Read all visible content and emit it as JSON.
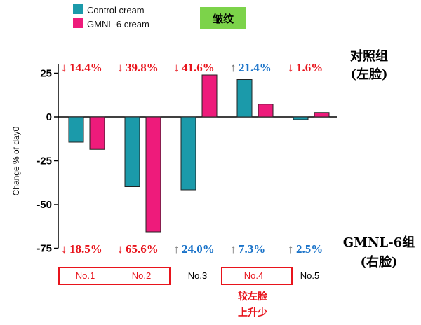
{
  "chart_data": {
    "type": "bar",
    "title": "皱纹",
    "ylabel": "Change % of day0",
    "ylim": [
      -75,
      30
    ],
    "yticks": [
      25,
      0,
      -25,
      -50,
      -75
    ],
    "categories": [
      "No.1",
      "No.2",
      "No.3",
      "No.4",
      "No.5"
    ],
    "series": [
      {
        "name": "Control cream",
        "color": "#1b9aaa",
        "values": [
          -14.4,
          -39.8,
          -41.6,
          21.4,
          -1.6
        ]
      },
      {
        "name": "GMNL-6 cream",
        "color": "#ee1b7b",
        "values": [
          -18.5,
          -65.6,
          24.0,
          7.3,
          2.5
        ]
      }
    ],
    "top_annotations": [
      {
        "arrow": "↓",
        "text": "14.4%",
        "color": "#e8141c"
      },
      {
        "arrow": "↓",
        "text": "39.8%",
        "color": "#e8141c"
      },
      {
        "arrow": "↓",
        "text": "41.6%",
        "color": "#e8141c"
      },
      {
        "arrow": "↑",
        "text": "21.4%",
        "color": "#1a73c9"
      },
      {
        "arrow": "↓",
        "text": "1.6%",
        "color": "#e8141c"
      }
    ],
    "bottom_annotations": [
      {
        "arrow": "↓",
        "text": "18.5%",
        "color": "#e8141c"
      },
      {
        "arrow": "↓",
        "text": "65.6%",
        "color": "#e8141c"
      },
      {
        "arrow": "↑",
        "text": "24.0%",
        "color": "#1a73c9"
      },
      {
        "arrow": "↑",
        "text": "7.3%",
        "color": "#1a73c9"
      },
      {
        "arrow": "↑",
        "text": "2.5%",
        "color": "#1a73c9"
      }
    ],
    "highlighted_groups": [
      [
        "No.1",
        "No.2"
      ],
      [
        "No.4"
      ]
    ],
    "side_labels": {
      "top_line1": "对照组",
      "top_line2": "(左脸)",
      "bottom_line1": "GMNL-6组",
      "bottom_line2": "(右脸)"
    },
    "note_line1": "较左脸",
    "note_line2": "上升少",
    "grid": false,
    "legend_position": "top-left"
  },
  "colors": {
    "title_bg": "#7cd34a",
    "highlight_box": "#e8141c",
    "axis": "#000000"
  }
}
